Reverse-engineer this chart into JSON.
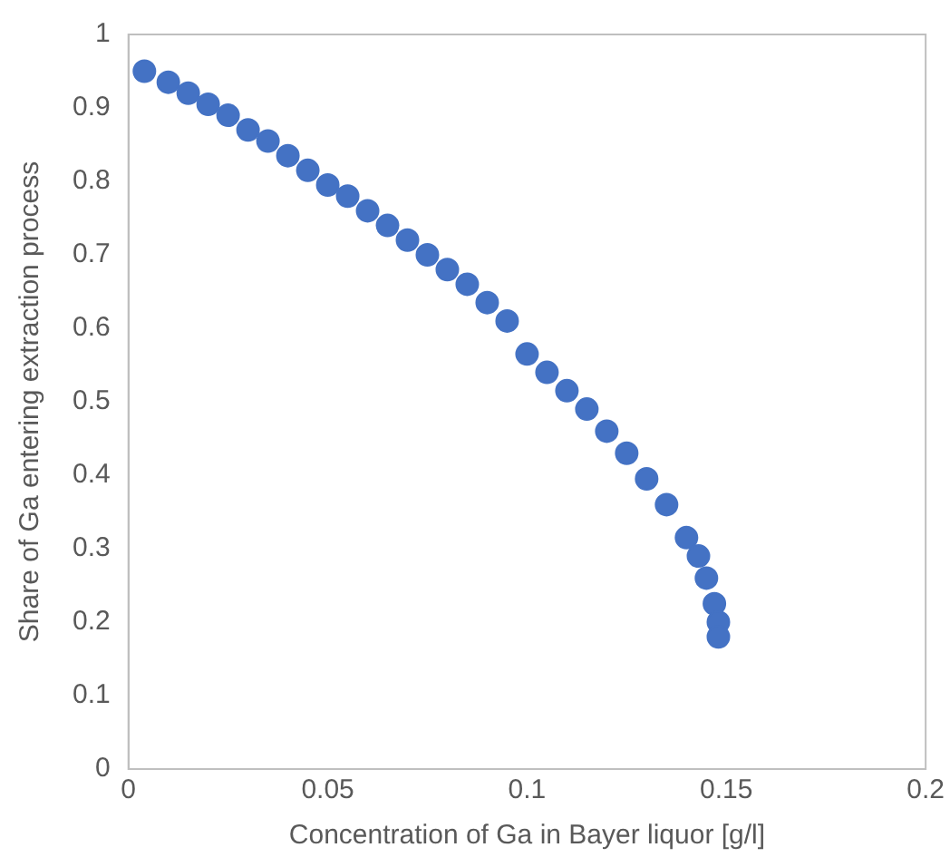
{
  "chart_data": {
    "type": "scatter",
    "xlabel": "Concentration of Ga in Bayer liquor [g/l]",
    "ylabel": "Share of Ga entering extraction process",
    "x": [
      0.004,
      0.01,
      0.015,
      0.02,
      0.025,
      0.03,
      0.035,
      0.04,
      0.045,
      0.05,
      0.055,
      0.06,
      0.065,
      0.07,
      0.075,
      0.08,
      0.085,
      0.09,
      0.095,
      0.1,
      0.105,
      0.11,
      0.115,
      0.12,
      0.125,
      0.13,
      0.135,
      0.14,
      0.143,
      0.145,
      0.147,
      0.148,
      0.148
    ],
    "series": [
      {
        "color": "#4472c4",
        "values": [
          0.95,
          0.935,
          0.92,
          0.905,
          0.89,
          0.87,
          0.855,
          0.835,
          0.815,
          0.795,
          0.78,
          0.76,
          0.74,
          0.72,
          0.7,
          0.68,
          0.66,
          0.635,
          0.61,
          0.565,
          0.54,
          0.515,
          0.49,
          0.46,
          0.43,
          0.395,
          0.36,
          0.315,
          0.29,
          0.26,
          0.225,
          0.2,
          0.18
        ]
      }
    ],
    "xlim": [
      0,
      0.2
    ],
    "xticks": [
      0,
      0.05,
      0.1,
      0.15,
      0.2
    ],
    "ylim": [
      0,
      1
    ],
    "yticks": [
      0,
      0.1,
      0.2,
      0.3,
      0.4,
      0.5,
      0.6,
      0.7,
      0.8,
      0.9,
      1
    ],
    "grid": false,
    "legend": false,
    "marker": "circle"
  }
}
